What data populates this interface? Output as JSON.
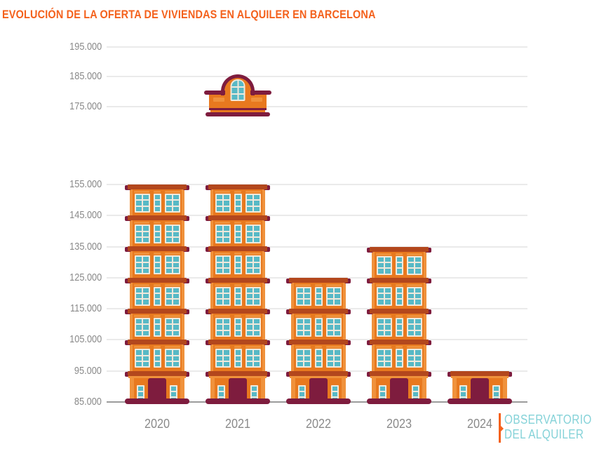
{
  "title": "EVOLUCIÓN DE LA OFERTA DE VIVIENDAS EN ALQUILER EN BARCELONA",
  "logo": {
    "line1": "OBSERVATORIO",
    "line2": "DEL ALQUILER"
  },
  "colors": {
    "title_orange": "#F4611C",
    "facade_orange": "#E8791F",
    "facade_light": "#F0923C",
    "cornice_rust": "#B3471D",
    "maroon": "#7E1C3E",
    "window_teal": "#57B9C6",
    "window_frame": "#EFE9DC",
    "axis_gray": "#8A8A8A",
    "gridline": "#EAEAEA",
    "baseline": "#9C9C9C",
    "logo_teal": "#84D2D8"
  },
  "chart_data": {
    "type": "bar",
    "style": "pictorial-building-columns",
    "title": "EVOLUCIÓN DE LA OFERTA DE VIVIENDAS EN ALQUILER EN BARCELONA",
    "categories": [
      "2020",
      "2021",
      "2022",
      "2023",
      "2024"
    ],
    "values": [
      155000,
      185000,
      125000,
      135000,
      95000
    ],
    "unit": "viviendas en alquiler",
    "ylim": [
      85000,
      195000
    ],
    "axis_break": [
      155000,
      175000
    ],
    "broken_bar_category": "2021",
    "grid": true,
    "legend": false,
    "xlabel": "",
    "ylabel": "",
    "y_ticks": [
      {
        "label": "195.000",
        "value": 195000
      },
      {
        "label": "185.000",
        "value": 185000
      },
      {
        "label": "175.000",
        "value": 175000
      },
      {
        "label": "155.000",
        "value": 155000
      },
      {
        "label": "145.000",
        "value": 145000
      },
      {
        "label": "135.000",
        "value": 135000
      },
      {
        "label": "125.000",
        "value": 125000
      },
      {
        "label": "115.000",
        "value": 115000
      },
      {
        "label": "105.000",
        "value": 105000
      },
      {
        "label": "95.000",
        "value": 95000
      },
      {
        "label": "85.000",
        "value": 85000
      }
    ]
  }
}
